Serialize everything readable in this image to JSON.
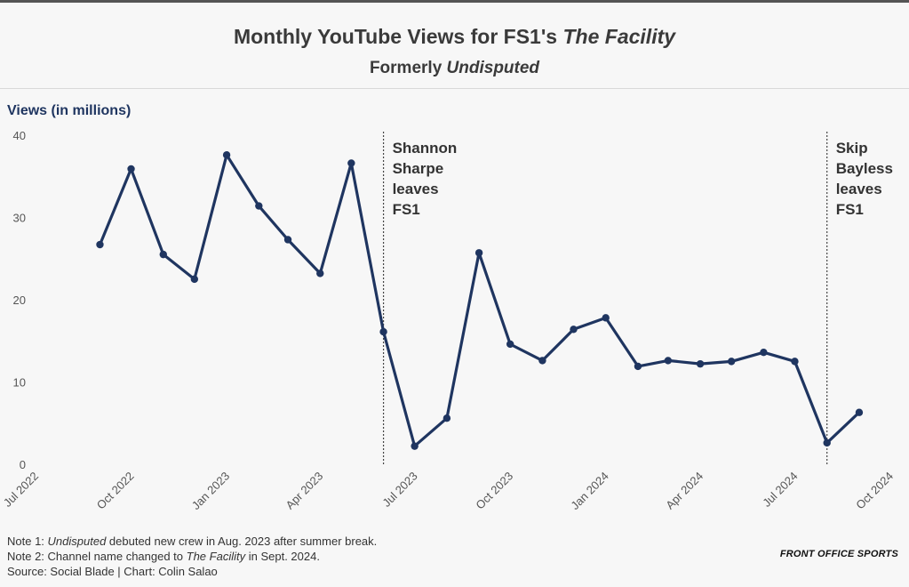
{
  "header": {
    "title_prefix": "Monthly YouTube Views for FS1's ",
    "title_italic": "The Facility",
    "subtitle_prefix": "Formerly ",
    "subtitle_italic": "Undisputed"
  },
  "colors": {
    "line": "#1f3560",
    "axis_text": "#555555",
    "annotation_text": "#333333",
    "background": "#f7f7f7"
  },
  "chart_data": {
    "type": "line",
    "ylabel": "Views (in millions)",
    "ylim": [
      0,
      40
    ],
    "yticks": [
      0,
      10,
      20,
      30,
      40
    ],
    "xlim": [
      "2022-07-01",
      "2024-10-01"
    ],
    "xticks": [
      {
        "date": "2022-07-01",
        "label": "Jul 2022"
      },
      {
        "date": "2022-10-01",
        "label": "Oct 2022"
      },
      {
        "date": "2023-01-01",
        "label": "Jan 2023"
      },
      {
        "date": "2023-04-01",
        "label": "Apr 2023"
      },
      {
        "date": "2023-07-01",
        "label": "Jul 2023"
      },
      {
        "date": "2023-10-01",
        "label": "Oct 2023"
      },
      {
        "date": "2024-01-01",
        "label": "Jan 2024"
      },
      {
        "date": "2024-04-01",
        "label": "Apr 2024"
      },
      {
        "date": "2024-07-01",
        "label": "Jul 2024"
      },
      {
        "date": "2024-10-01",
        "label": "Oct 2024"
      }
    ],
    "grid": false,
    "series": [
      {
        "points": [
          {
            "x": "2022-09-01",
            "y": 26.7
          },
          {
            "x": "2022-10-01",
            "y": 35.9
          },
          {
            "x": "2022-11-01",
            "y": 25.5
          },
          {
            "x": "2022-12-01",
            "y": 22.5
          },
          {
            "x": "2023-01-01",
            "y": 37.6
          },
          {
            "x": "2023-02-01",
            "y": 31.4
          },
          {
            "x": "2023-03-01",
            "y": 27.3
          },
          {
            "x": "2023-04-01",
            "y": 23.2
          },
          {
            "x": "2023-05-01",
            "y": 36.6
          },
          {
            "x": "2023-06-01",
            "y": 16.1
          },
          {
            "x": "2023-07-01",
            "y": 2.2
          },
          {
            "x": "2023-08-01",
            "y": 5.6
          },
          {
            "x": "2023-09-01",
            "y": 25.7
          },
          {
            "x": "2023-10-01",
            "y": 14.6
          },
          {
            "x": "2023-11-01",
            "y": 12.6
          },
          {
            "x": "2023-12-01",
            "y": 16.4
          },
          {
            "x": "2024-01-01",
            "y": 17.8
          },
          {
            "x": "2024-02-01",
            "y": 11.9
          },
          {
            "x": "2024-03-01",
            "y": 12.6
          },
          {
            "x": "2024-04-01",
            "y": 12.2
          },
          {
            "x": "2024-05-01",
            "y": 12.5
          },
          {
            "x": "2024-06-01",
            "y": 13.6
          },
          {
            "x": "2024-07-01",
            "y": 12.5
          },
          {
            "x": "2024-08-01",
            "y": 2.6
          },
          {
            "x": "2024-09-01",
            "y": 6.3
          }
        ]
      }
    ],
    "annotations": [
      {
        "x": "2023-06-01",
        "lines": [
          "Shannon",
          "Sharpe",
          "leaves",
          "FS1"
        ]
      },
      {
        "x": "2024-08-01",
        "lines": [
          "Skip",
          "Bayless",
          "leaves",
          "FS1"
        ]
      }
    ]
  },
  "notes": {
    "note1_prefix": "Note 1: ",
    "note1_italic": "Undisputed",
    "note1_suffix": " debuted new crew in Aug. 2023 after summer break.",
    "note2_prefix": "Note 2: Channel name changed to ",
    "note2_italic": "The Facility",
    "note2_suffix": " in Sept. 2024.",
    "source": "Source: Social Blade | Chart: Colin Salao"
  },
  "brand": "FRONT OFFICE SPORTS"
}
